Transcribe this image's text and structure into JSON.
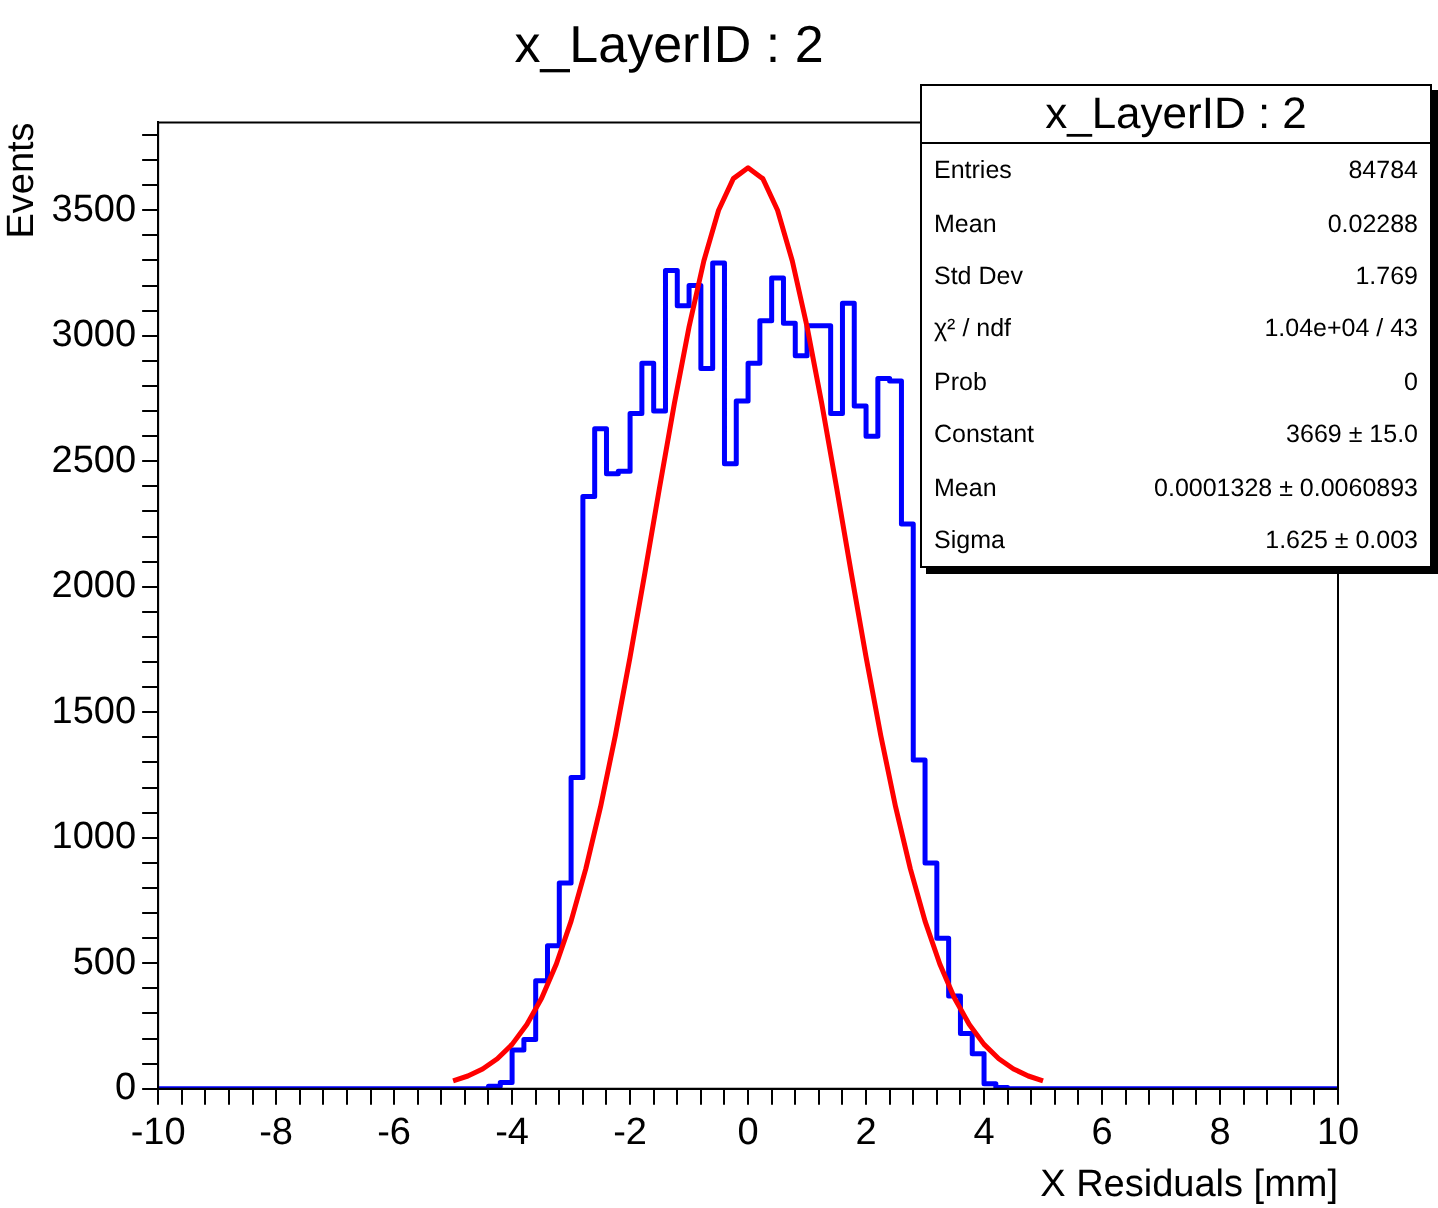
{
  "chart_data": {
    "type": "histogram",
    "title": "x_LayerID : 2",
    "xlabel": "X Residuals [mm]",
    "ylabel": "Events",
    "bins": [
      -10,
      -9.8,
      -9.6,
      -9.4,
      -9.2,
      -9,
      -8.8,
      -8.6,
      -8.4,
      -8.2,
      -8,
      -7.8,
      -7.6,
      -7.4,
      -7.2,
      -7,
      -6.8,
      -6.6,
      -6.4,
      -6.2,
      -6,
      -5.8,
      -5.6,
      -5.4,
      -5.2,
      -5,
      -4.8,
      -4.6,
      -4.4,
      -4.2,
      -4,
      -3.8,
      -3.6,
      -3.4,
      -3.2,
      -3,
      -2.8,
      -2.6,
      -2.4,
      -2.2,
      -2,
      -1.8,
      -1.6,
      -1.4,
      -1.2,
      -1,
      -0.8,
      -0.6,
      -0.4,
      -0.2,
      0,
      0.2,
      0.4,
      0.6,
      0.8,
      1,
      1.2,
      1.4,
      1.6,
      1.8,
      2,
      2.2,
      2.4,
      2.6,
      2.8,
      3,
      3.2,
      3.4,
      3.6,
      3.8,
      4,
      4.2,
      4.4,
      4.6,
      4.8,
      5,
      5.2,
      5.4,
      5.6,
      5.8,
      6,
      6.2,
      6.4,
      6.6,
      6.8,
      7,
      7.2,
      7.4,
      7.6,
      7.8,
      8,
      8.2,
      8.4,
      8.6,
      8.8,
      9,
      9.2,
      9.4,
      9.6,
      9.8,
      10
    ],
    "series": [
      {
        "type": "histogram",
        "color": "#0000ff",
        "values": [
          0,
          0,
          0,
          0,
          0,
          0,
          0,
          0,
          0,
          0,
          0,
          0,
          0,
          0,
          0,
          0,
          0,
          0,
          0,
          0,
          0,
          0,
          0,
          0,
          0,
          0,
          0,
          0,
          10,
          25,
          155,
          196,
          430,
          570,
          820,
          1240,
          2360,
          2630,
          2450,
          2460,
          2690,
          2890,
          2700,
          3260,
          3120,
          3200,
          2870,
          3290,
          2490,
          2740,
          2890,
          3060,
          3230,
          3050,
          2920,
          3040,
          3040,
          2690,
          3130,
          2720,
          2600,
          2830,
          2820,
          2250,
          1310,
          900,
          600,
          370,
          220,
          140,
          20,
          5,
          0,
          0,
          0,
          0,
          0,
          0,
          0,
          0,
          0,
          0,
          0,
          0,
          0,
          0,
          0,
          0,
          0,
          0,
          0,
          0,
          0,
          0,
          0,
          0,
          0,
          0,
          0,
          0
        ]
      },
      {
        "type": "line",
        "color": "#ff0000",
        "x": [
          -5,
          -4.75,
          -4.5,
          -4.25,
          -4,
          -3.75,
          -3.5,
          -3.25,
          -3,
          -2.75,
          -2.5,
          -2.25,
          -2,
          -1.75,
          -1.5,
          -1.25,
          -1,
          -0.75,
          -0.5,
          -0.25,
          0,
          0.25,
          0.5,
          0.75,
          1,
          1.25,
          1.5,
          1.75,
          2,
          2.25,
          2.5,
          2.75,
          3,
          3.25,
          3.5,
          3.75,
          4,
          4.25,
          4.5,
          4.75,
          5
        ],
        "values": [
          32,
          51,
          79,
          120,
          177,
          256,
          361,
          497,
          668,
          877,
          1124,
          1407,
          1720,
          2054,
          2396,
          2729,
          3036,
          3298,
          3500,
          3626,
          3669,
          3626,
          3500,
          3298,
          3036,
          2729,
          2396,
          2054,
          1720,
          1407,
          1124,
          877,
          668,
          497,
          361,
          256,
          177,
          120,
          79,
          51,
          32
        ]
      }
    ],
    "xlim": [
      -10,
      10
    ],
    "xticks": [
      -10,
      {
        "value": -9.6,
        "label": null
      },
      {
        "value": -9.2,
        "label": null
      },
      {
        "value": -8.8,
        "label": null
      },
      {
        "value": -8.4,
        "label": null
      },
      -8,
      {
        "value": -7.6,
        "label": null
      },
      {
        "value": -7.2,
        "label": null
      },
      {
        "value": -6.8,
        "label": null
      },
      {
        "value": -6.4,
        "label": null
      },
      -6,
      {
        "value": -5.6,
        "label": null
      },
      {
        "value": -5.2,
        "label": null
      },
      {
        "value": -4.8,
        "label": null
      },
      {
        "value": -4.4,
        "label": null
      },
      -4,
      {
        "value": -3.6,
        "label": null
      },
      {
        "value": -3.2,
        "label": null
      },
      {
        "value": -2.8,
        "label": null
      },
      {
        "value": -2.4,
        "label": null
      },
      -2,
      {
        "value": -1.6,
        "label": null
      },
      {
        "value": -1.2,
        "label": null
      },
      {
        "value": -0.8,
        "label": null
      },
      {
        "value": -0.4,
        "label": null
      },
      0,
      {
        "value": 0.4,
        "label": null
      },
      {
        "value": 0.8,
        "label": null
      },
      {
        "value": 1.2,
        "label": null
      },
      {
        "value": 1.6,
        "label": null
      },
      2,
      {
        "value": 2.4,
        "label": null
      },
      {
        "value": 2.8,
        "label": null
      },
      {
        "value": 3.2,
        "label": null
      },
      {
        "value": 3.6,
        "label": null
      },
      4,
      {
        "value": 4.4,
        "label": null
      },
      {
        "value": 4.8,
        "label": null
      },
      {
        "value": 5.2,
        "label": null
      },
      {
        "value": 5.6,
        "label": null
      },
      6,
      {
        "value": 6.4,
        "label": null
      },
      {
        "value": 6.8,
        "label": null
      },
      {
        "value": 7.2,
        "label": null
      },
      {
        "value": 7.6,
        "label": null
      },
      8,
      {
        "value": 8.4,
        "label": null
      },
      {
        "value": 8.8,
        "label": null
      },
      {
        "value": 9.2,
        "label": null
      },
      {
        "value": 9.6,
        "label": null
      },
      10
    ],
    "ylim": [
      0,
      3850
    ],
    "yticks": [
      0,
      {
        "value": 100,
        "label": null
      },
      {
        "value": 200,
        "label": null
      },
      {
        "value": 300,
        "label": null
      },
      {
        "value": 400,
        "label": null
      },
      500,
      {
        "value": 600,
        "label": null
      },
      {
        "value": 700,
        "label": null
      },
      {
        "value": 800,
        "label": null
      },
      {
        "value": 900,
        "label": null
      },
      1000,
      {
        "value": 1100,
        "label": null
      },
      {
        "value": 1200,
        "label": null
      },
      {
        "value": 1300,
        "label": null
      },
      {
        "value": 1400,
        "label": null
      },
      1500,
      {
        "value": 1600,
        "label": null
      },
      {
        "value": 1700,
        "label": null
      },
      {
        "value": 1800,
        "label": null
      },
      {
        "value": 1900,
        "label": null
      },
      2000,
      {
        "value": 2100,
        "label": null
      },
      {
        "value": 2200,
        "label": null
      },
      {
        "value": 2300,
        "label": null
      },
      {
        "value": 2400,
        "label": null
      },
      2500,
      {
        "value": 2600,
        "label": null
      },
      {
        "value": 2700,
        "label": null
      },
      {
        "value": 2800,
        "label": null
      },
      {
        "value": 2900,
        "label": null
      },
      3000,
      {
        "value": 3100,
        "label": null
      },
      {
        "value": 3200,
        "label": null
      },
      {
        "value": 3300,
        "label": null
      },
      {
        "value": 3400,
        "label": null
      },
      3500,
      {
        "value": 3600,
        "label": null
      },
      {
        "value": 3700,
        "label": null
      },
      {
        "value": 3800,
        "label": null
      }
    ],
    "grid": false,
    "legend": false,
    "marker": "none",
    "line_style": "solid",
    "annotations": [
      "x_LayerID : 2",
      "Entries",
      "84784",
      "Mean",
      "0.02288",
      "Std Dev",
      "1.769",
      "χ² / ndf",
      "1.04e+04 / 43",
      "Prob",
      "0",
      "Constant",
      "3669 ± 15.0",
      "Mean",
      "0.0001328 ± 0.0060893",
      "Sigma",
      "1.625 ± 0.003"
    ]
  }
}
